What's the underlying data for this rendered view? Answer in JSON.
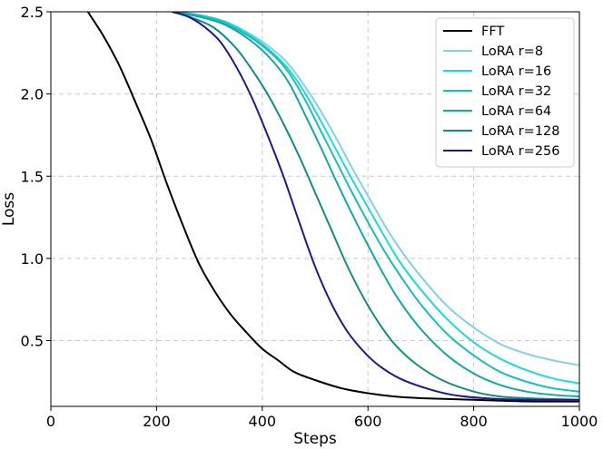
{
  "chart_data": {
    "type": "line",
    "title": "",
    "xlabel": "Steps",
    "ylabel": "Loss",
    "xlim": [
      0,
      1000
    ],
    "ylim": [
      0.1,
      2.5
    ],
    "xticks": [
      0,
      200,
      400,
      600,
      800,
      1000
    ],
    "yticks": [
      0.5,
      1.0,
      1.5,
      2.0,
      2.5
    ],
    "xtick_labels": [
      "0",
      "200",
      "400",
      "600",
      "800",
      "1000"
    ],
    "ytick_labels": [
      "0.5",
      "1.0",
      "1.5",
      "2.0",
      "2.5"
    ],
    "grid": true,
    "legend_position": "top-right",
    "series": [
      {
        "name": "FFT",
        "color": "#000000",
        "x": [
          70,
          100,
          130,
          160,
          190,
          220,
          250,
          280,
          310,
          340,
          370,
          400,
          430,
          460,
          500,
          550,
          600,
          650,
          700,
          800,
          900,
          1000
        ],
        "y": [
          2.5,
          2.35,
          2.17,
          1.95,
          1.72,
          1.45,
          1.2,
          0.97,
          0.8,
          0.66,
          0.55,
          0.45,
          0.38,
          0.31,
          0.26,
          0.21,
          0.18,
          0.16,
          0.15,
          0.14,
          0.13,
          0.13
        ]
      },
      {
        "name": "LoRA r=8",
        "color": "#87ceeb",
        "x": [
          230,
          280,
          330,
          380,
          420,
          450,
          480,
          510,
          540,
          570,
          600,
          630,
          660,
          700,
          750,
          800,
          850,
          900,
          950,
          1000
        ],
        "y": [
          2.5,
          2.48,
          2.44,
          2.36,
          2.27,
          2.18,
          2.05,
          1.9,
          1.73,
          1.55,
          1.38,
          1.21,
          1.06,
          0.89,
          0.71,
          0.58,
          0.48,
          0.42,
          0.38,
          0.35
        ]
      },
      {
        "name": "LoRA r=16",
        "color": "#20d8d8",
        "x": [
          230,
          280,
          330,
          380,
          420,
          450,
          480,
          510,
          540,
          570,
          600,
          630,
          660,
          700,
          750,
          800,
          850,
          900,
          950,
          1000
        ],
        "y": [
          2.5,
          2.48,
          2.44,
          2.35,
          2.25,
          2.15,
          2.01,
          1.84,
          1.66,
          1.48,
          1.31,
          1.14,
          0.98,
          0.81,
          0.63,
          0.49,
          0.39,
          0.32,
          0.27,
          0.24
        ]
      },
      {
        "name": "LoRA r=32",
        "color": "#16c0b8",
        "x": [
          230,
          280,
          330,
          380,
          420,
          450,
          480,
          510,
          540,
          570,
          600,
          630,
          660,
          700,
          750,
          800,
          850,
          900,
          950,
          1000
        ],
        "y": [
          2.5,
          2.48,
          2.43,
          2.34,
          2.24,
          2.13,
          1.97,
          1.78,
          1.59,
          1.4,
          1.22,
          1.05,
          0.9,
          0.72,
          0.54,
          0.41,
          0.31,
          0.25,
          0.21,
          0.19
        ]
      },
      {
        "name": "LoRA r=64",
        "color": "#13a8a4",
        "x": [
          230,
          280,
          330,
          380,
          420,
          450,
          480,
          510,
          540,
          570,
          600,
          630,
          660,
          700,
          750,
          800,
          850,
          900,
          950,
          1000
        ],
        "y": [
          2.5,
          2.47,
          2.42,
          2.32,
          2.2,
          2.07,
          1.88,
          1.68,
          1.47,
          1.27,
          1.08,
          0.9,
          0.74,
          0.57,
          0.41,
          0.3,
          0.23,
          0.19,
          0.17,
          0.16
        ]
      },
      {
        "name": "LoRA r=128",
        "color": "#128a87",
        "x": [
          230,
          270,
          310,
          350,
          380,
          410,
          440,
          470,
          500,
          530,
          560,
          590,
          620,
          650,
          690,
          740,
          800,
          850,
          900,
          1000
        ],
        "y": [
          2.5,
          2.46,
          2.4,
          2.28,
          2.15,
          2.0,
          1.82,
          1.62,
          1.4,
          1.18,
          0.96,
          0.77,
          0.61,
          0.48,
          0.36,
          0.26,
          0.19,
          0.16,
          0.15,
          0.14
        ]
      },
      {
        "name": "LoRA r=256",
        "color": "#1a1a8c",
        "x": [
          230,
          260,
          290,
          320,
          350,
          380,
          410,
          440,
          470,
          500,
          530,
          560,
          590,
          620,
          660,
          710,
          760,
          820,
          900,
          1000
        ],
        "y": [
          2.5,
          2.47,
          2.41,
          2.32,
          2.17,
          1.98,
          1.75,
          1.5,
          1.22,
          0.95,
          0.73,
          0.56,
          0.44,
          0.35,
          0.27,
          0.21,
          0.17,
          0.15,
          0.14,
          0.14
        ]
      }
    ]
  }
}
